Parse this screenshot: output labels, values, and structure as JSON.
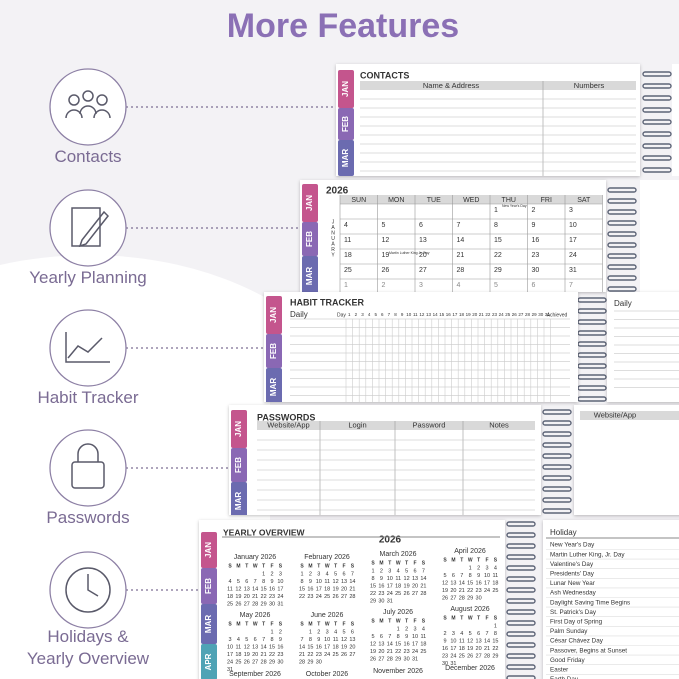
{
  "header": {
    "title": "More Features"
  },
  "features": [
    "Contacts",
    "Yearly Planning",
    "Habit Tracker",
    "Passwords",
    "Holidays & Yearly Overview"
  ],
  "tabs": [
    "JAN",
    "FEB",
    "MAR",
    "APR"
  ],
  "contacts": {
    "title": "CONTACTS",
    "columns": [
      "Name & Address",
      "Numbers"
    ]
  },
  "planning": {
    "year": "2026",
    "month": "JANUARY",
    "weekdays": [
      "SUN",
      "MON",
      "TUE",
      "WED",
      "THU",
      "FRI",
      "SAT"
    ],
    "weeks": [
      [
        null,
        null,
        null,
        null,
        1,
        2,
        3
      ],
      [
        4,
        5,
        6,
        7,
        8,
        9,
        10
      ],
      [
        11,
        12,
        13,
        14,
        15,
        16,
        17
      ],
      [
        18,
        19,
        20,
        21,
        22,
        23,
        24
      ],
      [
        25,
        26,
        27,
        28,
        29,
        30,
        31
      ],
      [
        1,
        2,
        3,
        4,
        5,
        6,
        7
      ]
    ],
    "notes": [
      "New Year's Day",
      "Martin Luther King Jr. Day"
    ]
  },
  "habit": {
    "title": "HABIT TRACKER",
    "label": "Daily",
    "day_header": "Day",
    "days": [
      1,
      2,
      3,
      4,
      5,
      6,
      7,
      8,
      9,
      10,
      11,
      12,
      13,
      14,
      15,
      16,
      17,
      18,
      19,
      20,
      21,
      22,
      23,
      24,
      25,
      26,
      27,
      28,
      29,
      30,
      31
    ],
    "achieved": "Achieved"
  },
  "passwords": {
    "title": "PASSWORDS",
    "columns": [
      "Website/App",
      "Login",
      "Password",
      "Notes"
    ]
  },
  "yearly": {
    "title": "YEARLY OVERVIEW",
    "year": "2026",
    "weekdays": [
      "S",
      "M",
      "T",
      "W",
      "T",
      "F",
      "S"
    ],
    "months": [
      {
        "name": "January 2026",
        "weeks": [
          [
            null,
            null,
            null,
            null,
            1,
            2,
            3
          ],
          [
            4,
            5,
            6,
            7,
            8,
            9,
            10
          ],
          [
            11,
            12,
            13,
            14,
            15,
            16,
            17
          ],
          [
            18,
            19,
            20,
            21,
            22,
            23,
            24
          ],
          [
            25,
            26,
            27,
            28,
            29,
            30,
            31
          ]
        ]
      },
      {
        "name": "February 2026",
        "weeks": [
          [
            1,
            2,
            3,
            4,
            5,
            6,
            7
          ],
          [
            8,
            9,
            10,
            11,
            12,
            13,
            14
          ],
          [
            15,
            16,
            17,
            18,
            19,
            20,
            21
          ],
          [
            22,
            23,
            24,
            25,
            26,
            27,
            28
          ]
        ]
      },
      {
        "name": "March 2026",
        "weeks": [
          [
            1,
            2,
            3,
            4,
            5,
            6,
            7
          ],
          [
            8,
            9,
            10,
            11,
            12,
            13,
            14
          ],
          [
            15,
            16,
            17,
            18,
            19,
            20,
            21
          ],
          [
            22,
            23,
            24,
            25,
            26,
            27,
            28
          ],
          [
            29,
            30,
            31
          ]
        ]
      },
      {
        "name": "April 2026",
        "weeks": [
          [
            null,
            null,
            null,
            1,
            2,
            3,
            4
          ],
          [
            5,
            6,
            7,
            8,
            9,
            10,
            11
          ],
          [
            12,
            13,
            14,
            15,
            16,
            17,
            18
          ],
          [
            19,
            20,
            21,
            22,
            23,
            24,
            25
          ],
          [
            26,
            27,
            28,
            29,
            30
          ]
        ]
      },
      {
        "name": "May 2026",
        "weeks": [
          [
            null,
            null,
            null,
            null,
            null,
            1,
            2
          ],
          [
            3,
            4,
            5,
            6,
            7,
            8,
            9
          ],
          [
            10,
            11,
            12,
            13,
            14,
            15,
            16
          ],
          [
            17,
            18,
            19,
            20,
            21,
            22,
            23
          ],
          [
            24,
            25,
            26,
            27,
            28,
            29,
            30
          ],
          [
            31
          ]
        ]
      },
      {
        "name": "June 2026",
        "weeks": [
          [
            null,
            1,
            2,
            3,
            4,
            5,
            6
          ],
          [
            7,
            8,
            9,
            10,
            11,
            12,
            13
          ],
          [
            14,
            15,
            16,
            17,
            18,
            19,
            20
          ],
          [
            21,
            22,
            23,
            24,
            25,
            26,
            27
          ],
          [
            28,
            29,
            30
          ]
        ]
      },
      {
        "name": "July 2026",
        "weeks": [
          [
            null,
            null,
            null,
            1,
            2,
            3,
            4
          ],
          [
            5,
            6,
            7,
            8,
            9,
            10,
            11
          ],
          [
            12,
            13,
            14,
            15,
            16,
            17,
            18
          ],
          [
            19,
            20,
            21,
            22,
            23,
            24,
            25
          ],
          [
            26,
            27,
            28,
            29,
            30,
            31
          ]
        ]
      },
      {
        "name": "August 2026",
        "weeks": [
          [
            null,
            null,
            null,
            null,
            null,
            null,
            1
          ],
          [
            2,
            3,
            4,
            5,
            6,
            7,
            8
          ],
          [
            9,
            10,
            11,
            12,
            13,
            14,
            15
          ],
          [
            16,
            17,
            18,
            19,
            20,
            21,
            22
          ],
          [
            23,
            24,
            25,
            26,
            27,
            28,
            29
          ],
          [
            30,
            31
          ]
        ]
      },
      {
        "name": "September 2026"
      },
      {
        "name": "October 2026"
      },
      {
        "name": "November 2026"
      },
      {
        "name": "December 2026"
      }
    ],
    "holiday_header": "Holiday",
    "holidays": [
      "New Year's Day",
      "Martin Luther King, Jr. Day",
      "Valentine's Day",
      "Presidents' Day",
      "Lunar New Year",
      "Ash Wednesday",
      "Daylight Saving Time Begins",
      "St. Patrick's Day",
      "First Day of Spring",
      "Palm Sunday",
      "César Chávez Day",
      "Passover, Begins at Sunset",
      "Good Friday",
      "Easter",
      "Earth Day"
    ]
  }
}
